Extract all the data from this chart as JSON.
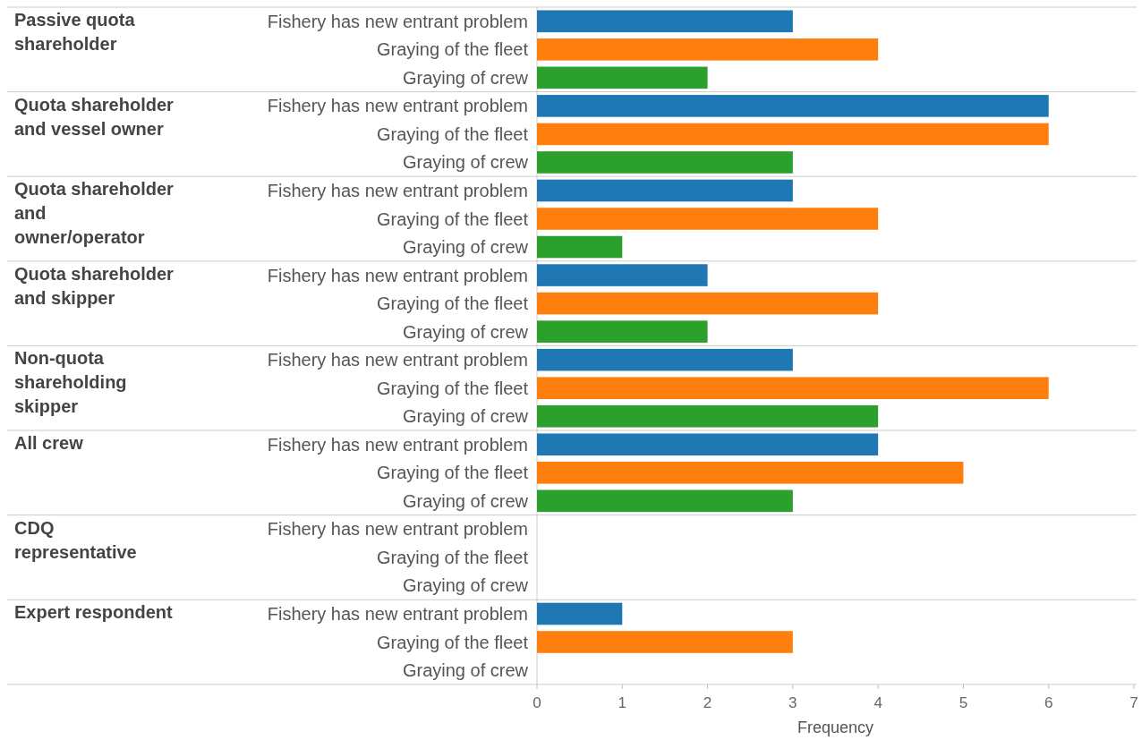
{
  "chart_data": [
    {
      "type": "bar",
      "orientation": "horizontal",
      "ylabel": "Passive quota shareholder",
      "categories": [
        "Fishery has new entrant problem",
        "Graying of the fleet",
        "Graying of crew"
      ],
      "values": [
        3,
        4,
        2
      ],
      "colors": [
        "#1f77b4",
        "#ff7f0e",
        "#2ca02c"
      ],
      "xlim": [
        0,
        7
      ],
      "tick_labels": "y"
    },
    {
      "type": "bar",
      "orientation": "horizontal",
      "ylabel": "Quota shareholder and vessel owner",
      "categories": [
        "Fishery has new entrant problem",
        "Graying of the fleet",
        "Graying of crew"
      ],
      "values": [
        6,
        6,
        3
      ],
      "colors": [
        "#1f77b4",
        "#ff7f0e",
        "#2ca02c"
      ],
      "xlim": [
        0,
        7
      ],
      "tick_labels": "y"
    },
    {
      "type": "bar",
      "orientation": "horizontal",
      "ylabel": "Quota shareholder and owner/operator",
      "categories": [
        "Fishery has new entrant problem",
        "Graying of the fleet",
        "Graying of crew"
      ],
      "values": [
        3,
        4,
        1
      ],
      "colors": [
        "#1f77b4",
        "#ff7f0e",
        "#2ca02c"
      ],
      "xlim": [
        0,
        7
      ],
      "tick_labels": "y"
    },
    {
      "type": "bar",
      "orientation": "horizontal",
      "ylabel": "Quota shareholder and skipper",
      "categories": [
        "Fishery has new entrant problem",
        "Graying of the fleet",
        "Graying of crew"
      ],
      "values": [
        2,
        4,
        2
      ],
      "colors": [
        "#1f77b4",
        "#ff7f0e",
        "#2ca02c"
      ],
      "xlim": [
        0,
        7
      ],
      "tick_labels": "y"
    },
    {
      "type": "bar",
      "orientation": "horizontal",
      "ylabel": "Non-quota shareholding skipper",
      "categories": [
        "Fishery has new entrant problem",
        "Graying of the fleet",
        "Graying of crew"
      ],
      "values": [
        3,
        6,
        4
      ],
      "colors": [
        "#1f77b4",
        "#ff7f0e",
        "#2ca02c"
      ],
      "xlim": [
        0,
        7
      ],
      "tick_labels": "y"
    },
    {
      "type": "bar",
      "orientation": "horizontal",
      "ylabel": "All crew",
      "categories": [
        "Fishery has new entrant problem",
        "Graying of the fleet",
        "Graying of crew"
      ],
      "values": [
        4,
        5,
        3
      ],
      "colors": [
        "#1f77b4",
        "#ff7f0e",
        "#2ca02c"
      ],
      "xlim": [
        0,
        7
      ],
      "tick_labels": "y"
    },
    {
      "type": "bar",
      "orientation": "horizontal",
      "ylabel": "CDQ representative",
      "categories": [
        "Fishery has new entrant problem",
        "Graying of the fleet",
        "Graying of crew"
      ],
      "values": [
        null,
        null,
        null
      ],
      "xlim": [
        0,
        7
      ],
      "tick_labels": "y"
    },
    {
      "type": "bar",
      "orientation": "horizontal",
      "ylabel": "Expert respondent",
      "categories": [
        "Fishery has new entrant problem",
        "Graying of the fleet",
        "Graying of crew"
      ],
      "values": [
        1,
        3,
        null
      ],
      "colors": [
        "#1f77b4",
        "#ff7f0e",
        null
      ],
      "xlim": [
        0,
        7
      ],
      "xticks": [
        0,
        1,
        2,
        3,
        4,
        5,
        6,
        7
      ],
      "xlabel": "Frequency"
    }
  ]
}
